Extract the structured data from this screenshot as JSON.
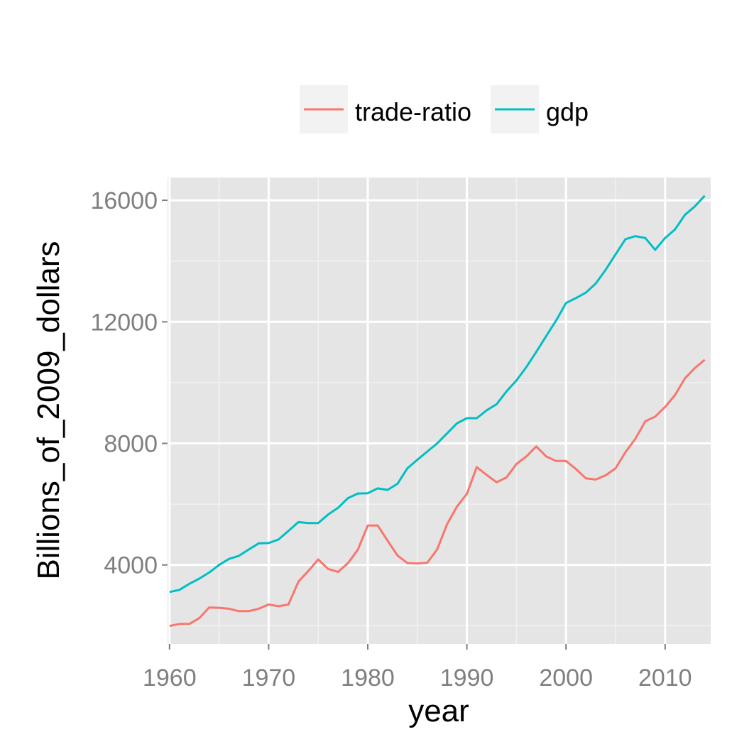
{
  "chart_data": {
    "type": "line",
    "title": "",
    "xlabel": "year",
    "ylabel": "Billions_of_2009_dollars",
    "xlim": [
      1959.8,
      2014.6
    ],
    "ylim": [
      1400,
      16750
    ],
    "x_ticks": [
      1960,
      1970,
      1980,
      1990,
      2000,
      2010
    ],
    "y_ticks": [
      4000,
      8000,
      12000,
      16000
    ],
    "grid": true,
    "legend_position": "top",
    "x": [
      1960,
      1961,
      1962,
      1963,
      1964,
      1965,
      1966,
      1967,
      1968,
      1969,
      1970,
      1971,
      1972,
      1973,
      1974,
      1975,
      1976,
      1977,
      1978,
      1979,
      1980,
      1981,
      1982,
      1983,
      1984,
      1985,
      1986,
      1987,
      1988,
      1989,
      1990,
      1991,
      1992,
      1993,
      1994,
      1995,
      1996,
      1997,
      1998,
      1999,
      2000,
      2001,
      2002,
      2003,
      2004,
      2005,
      2006,
      2007,
      2008,
      2009,
      2010,
      2011,
      2012,
      2013,
      2014
    ],
    "series": [
      {
        "name": "trade-ratio",
        "color": "#f8766d",
        "values": [
          1990,
          2060,
          2060,
          2250,
          2600,
          2590,
          2560,
          2480,
          2480,
          2560,
          2700,
          2640,
          2700,
          3450,
          3800,
          4180,
          3870,
          3770,
          4060,
          4500,
          5300,
          5300,
          4800,
          4310,
          4060,
          4050,
          4070,
          4510,
          5340,
          5920,
          6340,
          7220,
          6960,
          6720,
          6880,
          7320,
          7570,
          7900,
          7570,
          7420,
          7420,
          7160,
          6850,
          6810,
          6950,
          7180,
          7710,
          8150,
          8730,
          8880,
          9200,
          9590,
          10140,
          10480,
          10750
        ]
      },
      {
        "name": "gdp",
        "color": "#00bfc4",
        "values": [
          3110,
          3180,
          3380,
          3550,
          3750,
          4000,
          4200,
          4300,
          4510,
          4710,
          4720,
          4840,
          5120,
          5410,
          5380,
          5380,
          5660,
          5880,
          6200,
          6350,
          6360,
          6520,
          6470,
          6670,
          7180,
          7460,
          7730,
          8000,
          8330,
          8660,
          8830,
          8830,
          9090,
          9290,
          9710,
          10070,
          10510,
          11010,
          11530,
          12040,
          12620,
          12780,
          12960,
          13260,
          13710,
          14220,
          14720,
          14820,
          14760,
          14370,
          14760,
          15040,
          15520,
          15800,
          16150
        ]
      }
    ]
  }
}
